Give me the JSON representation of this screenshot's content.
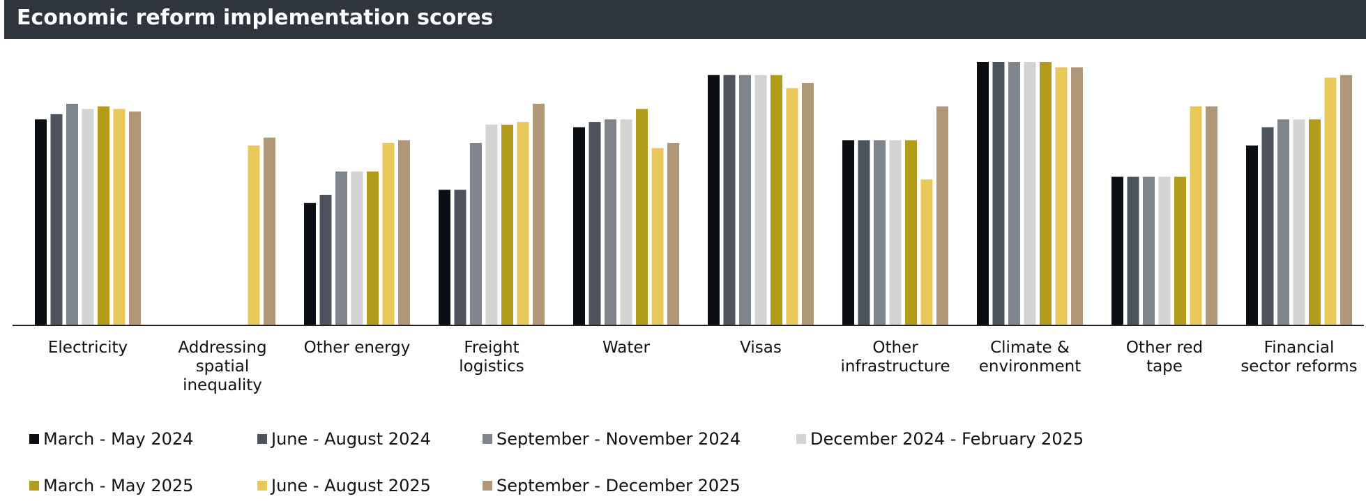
{
  "chart_data": {
    "type": "bar",
    "title": "Economic reform implementation scores",
    "categories": [
      "Electricity",
      "Addressing spatial inequality",
      "Other energy",
      "Freight logistics",
      "Water",
      "Visas",
      "Other infrastructure",
      "Climate & environment",
      "Other red tape",
      "Financial sector reforms"
    ],
    "series": [
      {
        "name": "March - May 2024",
        "color": "#0b0f14",
        "values": [
          79,
          null,
          47,
          52,
          76,
          96,
          71,
          101,
          57,
          69
        ]
      },
      {
        "name": "June - August 2024",
        "color": "#4d535c",
        "values": [
          81,
          null,
          50,
          52,
          78,
          96,
          71,
          101,
          57,
          76
        ]
      },
      {
        "name": "September - November 2024",
        "color": "#7f858d",
        "values": [
          85,
          null,
          59,
          70,
          79,
          96,
          71,
          101,
          57,
          79
        ]
      },
      {
        "name": "December 2024 - February 2025",
        "color": "#d3d3d3",
        "values": [
          83,
          null,
          59,
          77,
          79,
          96,
          71,
          101,
          57,
          79
        ]
      },
      {
        "name": "March - May 2025",
        "color": "#b39c1b",
        "values": [
          84,
          null,
          59,
          77,
          83,
          96,
          71,
          101,
          57,
          79
        ]
      },
      {
        "name": "June - August 2025",
        "color": "#e8c85a",
        "values": [
          83,
          69,
          70,
          78,
          68,
          91,
          56,
          99,
          84,
          95
        ]
      },
      {
        "name": "September - December 2025",
        "color": "#af9778",
        "values": [
          82,
          72,
          71,
          85,
          70,
          93,
          84,
          99,
          84,
          96
        ]
      }
    ],
    "ylim": [
      0,
      101
    ]
  }
}
